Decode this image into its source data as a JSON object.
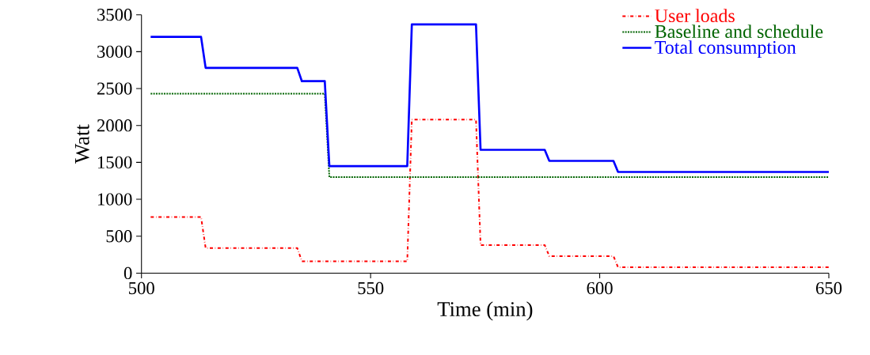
{
  "chart_data": {
    "type": "step",
    "xlabel": "Time (min)",
    "ylabel": "Watt",
    "xlim": [
      500,
      650
    ],
    "ylim": [
      0,
      3500
    ],
    "xticks": [
      500,
      550,
      600,
      650
    ],
    "yticks": [
      0,
      500,
      1000,
      1500,
      2000,
      2500,
      3000,
      3500
    ],
    "legend": "top right",
    "grid": false,
    "marker": "none",
    "series": [
      {
        "name": "User loads",
        "color": "#ff0000",
        "line_style": "dashdot",
        "x": [
          502,
          513,
          514,
          534,
          535,
          558,
          559,
          573,
          574,
          588,
          589,
          603,
          604,
          650
        ],
        "values": [
          760,
          760,
          340,
          340,
          160,
          160,
          2080,
          2080,
          380,
          380,
          230,
          230,
          80,
          80
        ]
      },
      {
        "name": "Baseline and schedule",
        "color": "#006400",
        "line_style": "dotted",
        "x": [
          502,
          540,
          541,
          650
        ],
        "values": [
          2430,
          2430,
          1300,
          1300
        ]
      },
      {
        "name": "Total consumption",
        "color": "#0000ff",
        "line_style": "solid",
        "x": [
          502,
          513,
          514,
          534,
          535,
          540,
          541,
          558,
          559,
          573,
          574,
          588,
          589,
          603,
          604,
          650
        ],
        "values": [
          3200,
          3200,
          2780,
          2780,
          2600,
          2600,
          1450,
          1450,
          3370,
          3370,
          1670,
          1670,
          1520,
          1520,
          1370,
          1370
        ]
      }
    ]
  }
}
